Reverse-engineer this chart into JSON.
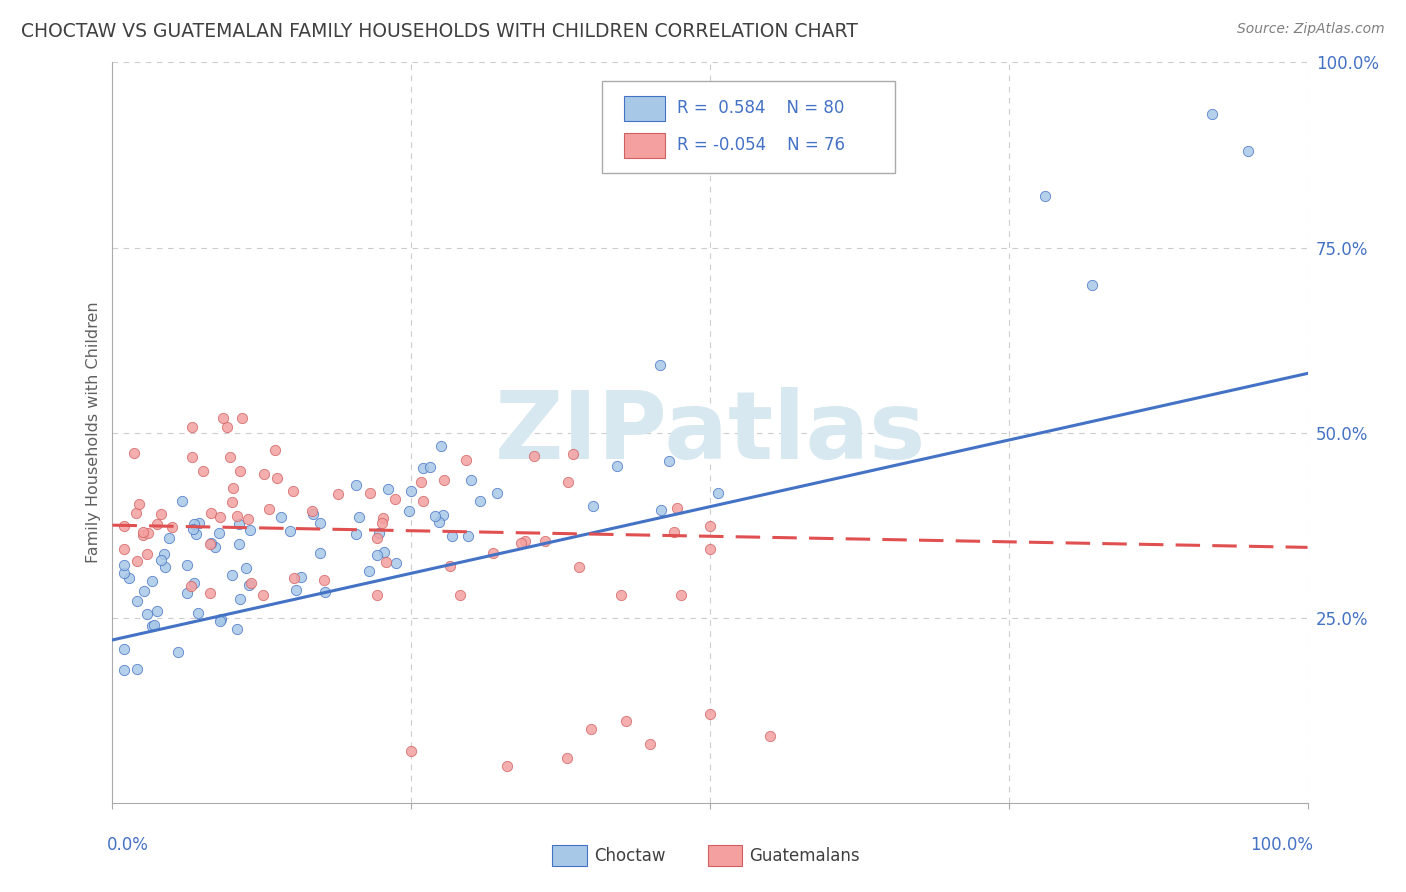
{
  "title": "CHOCTAW VS GUATEMALAN FAMILY HOUSEHOLDS WITH CHILDREN CORRELATION CHART",
  "source": "Source: ZipAtlas.com",
  "ylabel": "Family Households with Children",
  "choctaw_R": 0.584,
  "choctaw_N": 80,
  "guatemalan_R": -0.054,
  "guatemalan_N": 76,
  "choctaw_color": "#a8c8e8",
  "guatemalan_color": "#f4a0a0",
  "choctaw_line_color": "#4472c4",
  "guatemalan_line_color": "#e05050",
  "background_color": "#ffffff",
  "grid_color": "#cccccc",
  "right_tick_color": "#4472c4",
  "title_color": "#404040",
  "source_color": "#808080",
  "ylabel_color": "#606060",
  "watermark_color": "#d8e8f0",
  "legend_text_color": "#4472c4"
}
